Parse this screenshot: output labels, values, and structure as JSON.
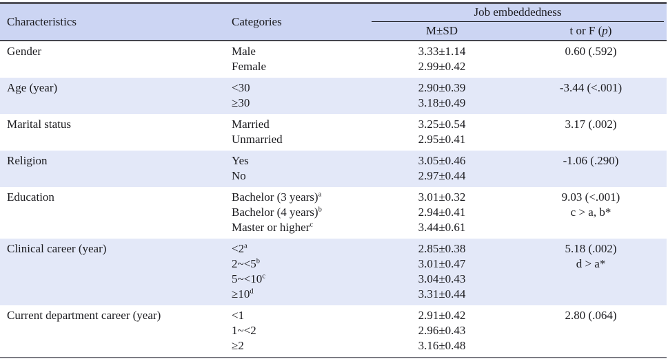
{
  "table": {
    "columns": {
      "characteristics_label": "Characteristics",
      "categories_label": "Categories",
      "group_label": "Job embeddedness",
      "msd_label": "M±SD",
      "stat_label_pre": "t or F (",
      "stat_label_p": "p",
      "stat_label_post": ")"
    },
    "colors": {
      "header_bg": "#ccd5f3",
      "row_alt_bg": "#e3e8f8",
      "top_border": "#53535c",
      "header_bottom_border": "#45454d",
      "bottom_border": "#7d7d85",
      "group_underline": "#15151a",
      "text": "#1b1b1f"
    },
    "rows": [
      {
        "characteristic": "Gender",
        "shaded": false,
        "items": [
          {
            "category": "Male",
            "sup": "",
            "msd": "3.33±1.14"
          },
          {
            "category": "Female",
            "sup": "",
            "msd": "2.99±0.42"
          }
        ],
        "stat": [
          "0.60 (.592)"
        ]
      },
      {
        "characteristic": "Age (year)",
        "shaded": true,
        "items": [
          {
            "category": "<30",
            "sup": "",
            "msd": "2.90±0.39"
          },
          {
            "category": "≥30",
            "sup": "",
            "msd": "3.18±0.49"
          }
        ],
        "stat": [
          "-3.44 (<.001)"
        ]
      },
      {
        "characteristic": "Marital status",
        "shaded": false,
        "items": [
          {
            "category": "Married",
            "sup": "",
            "msd": "3.25±0.54"
          },
          {
            "category": "Unmarried",
            "sup": "",
            "msd": "2.95±0.41"
          }
        ],
        "stat": [
          "3.17 (.002)"
        ]
      },
      {
        "characteristic": "Religion",
        "shaded": true,
        "items": [
          {
            "category": "Yes",
            "sup": "",
            "msd": "3.05±0.46"
          },
          {
            "category": "No",
            "sup": "",
            "msd": "2.97±0.44"
          }
        ],
        "stat": [
          "-1.06 (.290)"
        ]
      },
      {
        "characteristic": "Education",
        "shaded": false,
        "items": [
          {
            "category": "Bachelor (3 years)",
            "sup": "a",
            "msd": "3.01±0.32"
          },
          {
            "category": "Bachelor (4 years)",
            "sup": "b",
            "msd": "2.94±0.41"
          },
          {
            "category": "Master or higher",
            "sup": "c",
            "msd": "3.44±0.61"
          }
        ],
        "stat": [
          "9.03 (<.001)",
          "c > a, b*"
        ]
      },
      {
        "characteristic": "Clinical career (year)",
        "shaded": true,
        "items": [
          {
            "category": "<2",
            "sup": "a",
            "msd": "2.85±0.38"
          },
          {
            "category": "2~<5",
            "sup": "b",
            "msd": "3.01±0.47"
          },
          {
            "category": "5~<10",
            "sup": "c",
            "msd": "3.04±0.43"
          },
          {
            "category": "≥10",
            "sup": "d",
            "msd": "3.31±0.44"
          }
        ],
        "stat": [
          "5.18 (.002)",
          "d > a*"
        ]
      },
      {
        "characteristic": "Current department career (year)",
        "shaded": false,
        "items": [
          {
            "category": "<1",
            "sup": "",
            "msd": "2.91±0.42"
          },
          {
            "category": "1~<2",
            "sup": "",
            "msd": "2.96±0.43"
          },
          {
            "category": "≥2",
            "sup": "",
            "msd": "3.16±0.48"
          }
        ],
        "stat": [
          "2.80 (.064)"
        ]
      }
    ]
  }
}
